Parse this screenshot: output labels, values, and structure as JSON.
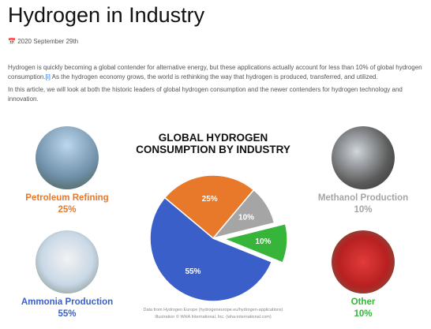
{
  "header": {
    "title": "Hydrogen in Industry",
    "date": "2020 September 29th"
  },
  "article": {
    "paragraphs": [
      [
        "Hydrogen is quickly becoming a global contender for alternative energy, but these applications actually account for less than 10% of global hydrogen consumption.",
        "[i]",
        " As the hydrogen economy grows, the world is rethinking the way that hydrogen is produced, transferred, and utilized."
      ],
      [
        "In this article, we will look at both the historic leaders of global hydrogen consumption and the newer contenders for hydrogen technology and innovation."
      ]
    ]
  },
  "chart_data": {
    "type": "pie",
    "title": "GLOBAL HYDROGEN CONSUMPTION BY INDUSTRY",
    "categories": [
      "Petroleum Refining",
      "Methanol Production",
      "Other",
      "Ammonia Production"
    ],
    "values": [
      25,
      10,
      10,
      55
    ],
    "value_labels": [
      "25%",
      "10%",
      "10%",
      "55%"
    ],
    "colors": [
      "#e8782a",
      "#a5a5a5",
      "#36b53a",
      "#3a5fc9"
    ],
    "explode": [
      false,
      false,
      true,
      false
    ],
    "notes": [
      "Data from Hydrogen Europe (hydrogeneurope.eu/hydrogen-applications)",
      "Illustration © WHA International, Inc. (wha-international.com)"
    ]
  }
}
